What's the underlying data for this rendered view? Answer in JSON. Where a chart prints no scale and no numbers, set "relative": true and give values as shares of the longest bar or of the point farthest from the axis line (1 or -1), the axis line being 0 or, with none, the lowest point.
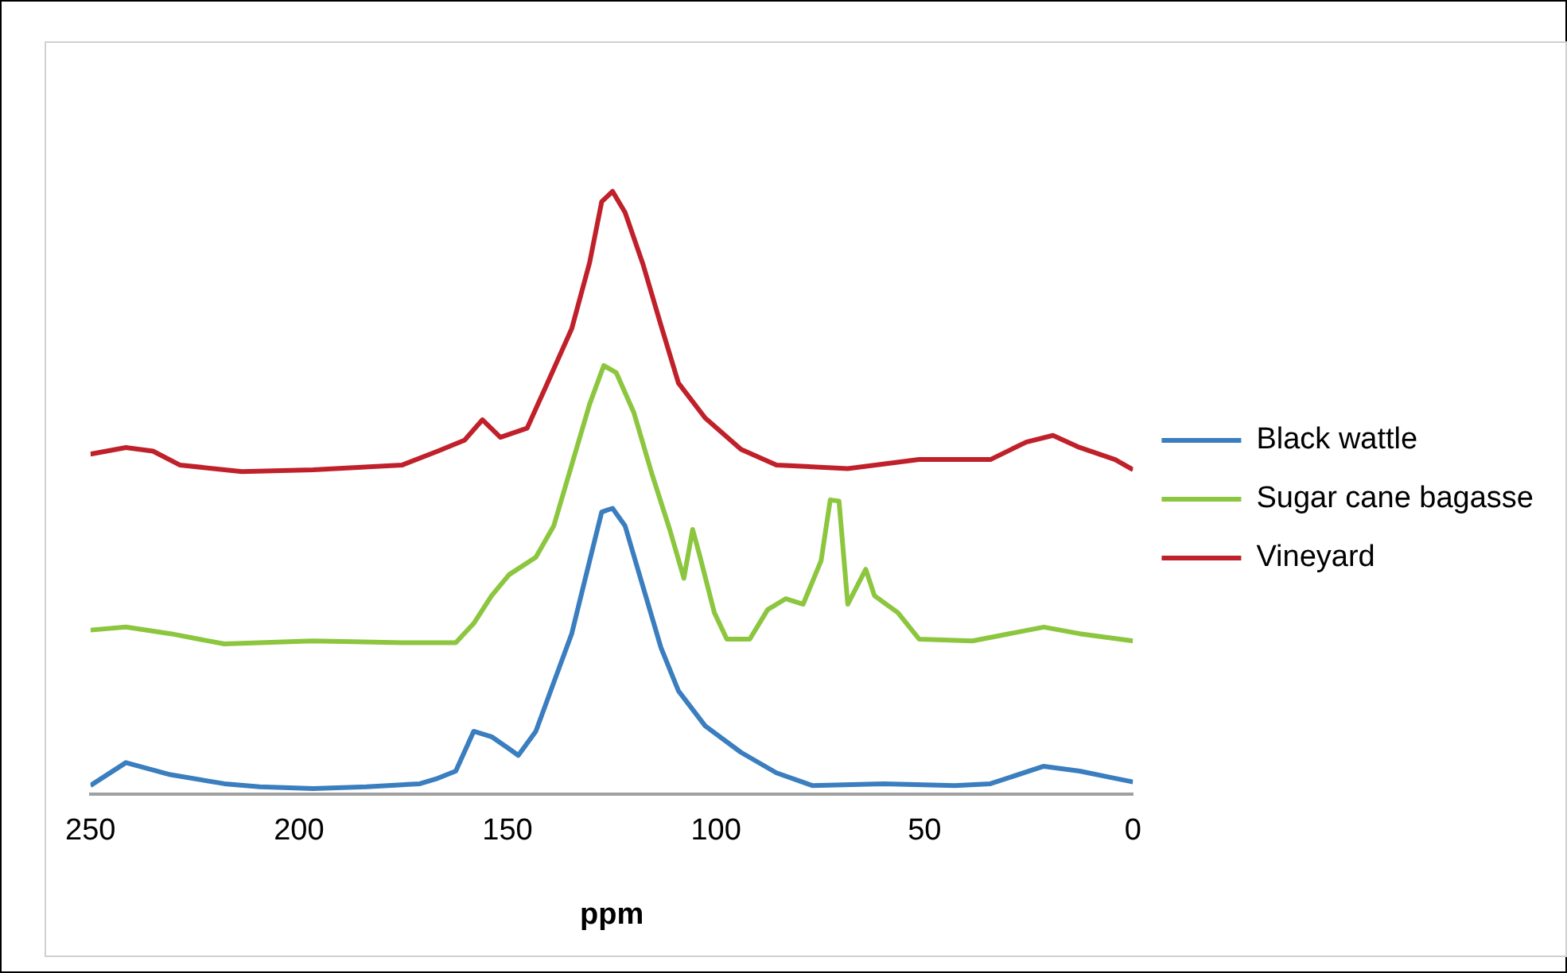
{
  "chart_data": {
    "type": "line",
    "xlabel": "ppm",
    "relative": true,
    "xlim": [
      250,
      0
    ],
    "xticks": [
      250,
      200,
      150,
      100,
      50,
      0
    ],
    "legend": "right",
    "grid": false,
    "marker": "none",
    "series": [
      {
        "name": "Black wattle",
        "color": "#3a7ebf",
        "x": [
          250.0,
          241.5,
          230.8,
          217.9,
          209.4,
          196.6,
          183.8,
          171.0,
          166.7,
          162.4,
          158.1,
          153.8,
          149.6,
          147.4,
          143.2,
          138.9,
          134.6,
          130.3,
          127.4,
          124.8,
          121.8,
          117.5,
          113.2,
          109.0,
          102.6,
          94.0,
          85.5,
          76.9,
          59.8,
          42.7,
          34.2,
          21.4,
          12.8,
          4.3,
          0.0
        ],
        "values": [
          0.014,
          0.052,
          0.032,
          0.017,
          0.012,
          0.009,
          0.012,
          0.017,
          0.026,
          0.038,
          0.104,
          0.095,
          0.075,
          0.064,
          0.104,
          0.185,
          0.266,
          0.387,
          0.468,
          0.474,
          0.445,
          0.344,
          0.243,
          0.171,
          0.113,
          0.069,
          0.035,
          0.014,
          0.017,
          0.014,
          0.017,
          0.046,
          0.038,
          0.026,
          0.02
        ]
      },
      {
        "name": "Sugar cane bagasse",
        "color": "#8cc63f",
        "x": [
          250.0,
          241.5,
          230.8,
          217.9,
          196.6,
          175.2,
          162.4,
          158.1,
          153.8,
          149.6,
          143.2,
          138.9,
          134.6,
          130.3,
          126.9,
          123.9,
          119.7,
          115.4,
          111.1,
          107.7,
          105.6,
          103.8,
          100.4,
          97.4,
          91.9,
          87.6,
          83.3,
          79.1,
          74.8,
          72.6,
          70.5,
          68.4,
          64.1,
          62.0,
          56.4,
          51.3,
          38.5,
          21.4,
          12.8,
          0.0
        ],
        "values": [
          0.272,
          0.277,
          0.266,
          0.249,
          0.254,
          0.251,
          0.251,
          0.283,
          0.329,
          0.364,
          0.393,
          0.445,
          0.546,
          0.647,
          0.711,
          0.699,
          0.633,
          0.532,
          0.439,
          0.358,
          0.439,
          0.393,
          0.301,
          0.257,
          0.257,
          0.306,
          0.324,
          0.315,
          0.387,
          0.488,
          0.486,
          0.315,
          0.373,
          0.329,
          0.301,
          0.257,
          0.254,
          0.277,
          0.266,
          0.254
        ]
      },
      {
        "name": "Vineyard",
        "color": "#c0202a",
        "x": [
          250.0,
          241.5,
          235.0,
          228.6,
          213.7,
          196.6,
          175.2,
          166.7,
          160.3,
          156.0,
          151.7,
          145.3,
          141.0,
          134.6,
          130.3,
          127.4,
          124.8,
          121.8,
          117.5,
          113.2,
          109.0,
          102.6,
          94.0,
          85.5,
          68.4,
          51.3,
          34.2,
          25.6,
          19.2,
          12.8,
          4.3,
          0.0
        ],
        "values": [
          0.564,
          0.575,
          0.569,
          0.546,
          0.535,
          0.538,
          0.546,
          0.569,
          0.587,
          0.621,
          0.592,
          0.607,
          0.673,
          0.772,
          0.882,
          0.983,
          1.0,
          0.965,
          0.879,
          0.778,
          0.682,
          0.624,
          0.572,
          0.546,
          0.54,
          0.555,
          0.555,
          0.584,
          0.595,
          0.575,
          0.555,
          0.538
        ]
      }
    ]
  }
}
